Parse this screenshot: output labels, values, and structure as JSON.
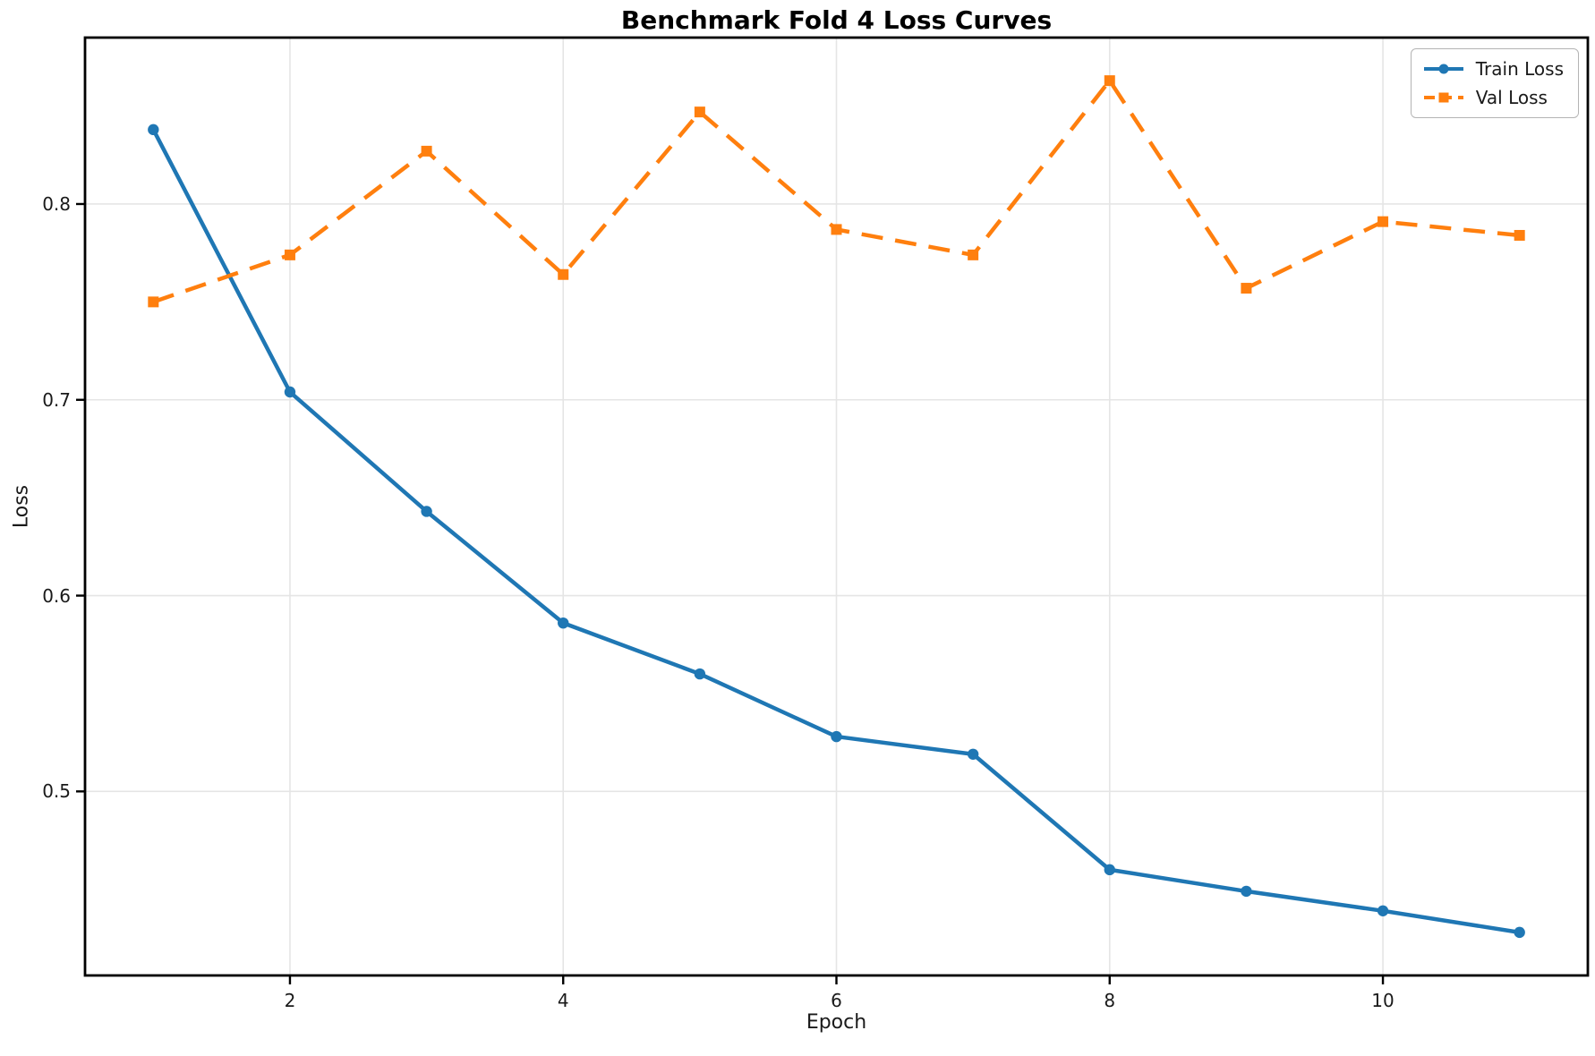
{
  "figure": {
    "background_color": "#ffffff",
    "text_color": "#1a1a1a",
    "grid_color": "#e5e5e5",
    "spine_color": "#000000"
  },
  "chart_data": {
    "type": "line",
    "title": "Benchmark Fold 4 Loss Curves",
    "xlabel": "Epoch",
    "ylabel": "Loss",
    "x": [
      1,
      2,
      3,
      4,
      5,
      6,
      7,
      8,
      9,
      10,
      11
    ],
    "series": [
      {
        "name": "Train Loss",
        "color": "#1f77b4",
        "line_style": "solid",
        "marker": "circle",
        "values": [
          0.838,
          0.704,
          0.643,
          0.586,
          0.56,
          0.528,
          0.519,
          0.46,
          0.449,
          0.439,
          0.428
        ]
      },
      {
        "name": "Val Loss",
        "color": "#ff7f0e",
        "line_style": "dashed",
        "marker": "square",
        "values": [
          0.75,
          0.774,
          0.827,
          0.764,
          0.847,
          0.787,
          0.774,
          0.863,
          0.757,
          0.791,
          0.784
        ]
      }
    ],
    "xlim": [
      0.5,
      11.5
    ],
    "ylim": [
      0.406,
      0.885
    ],
    "xticks": [
      2,
      4,
      6,
      8,
      10
    ],
    "yticks": [
      0.5,
      0.6,
      0.7,
      0.8
    ],
    "grid": true,
    "legend_position": "upper right"
  }
}
